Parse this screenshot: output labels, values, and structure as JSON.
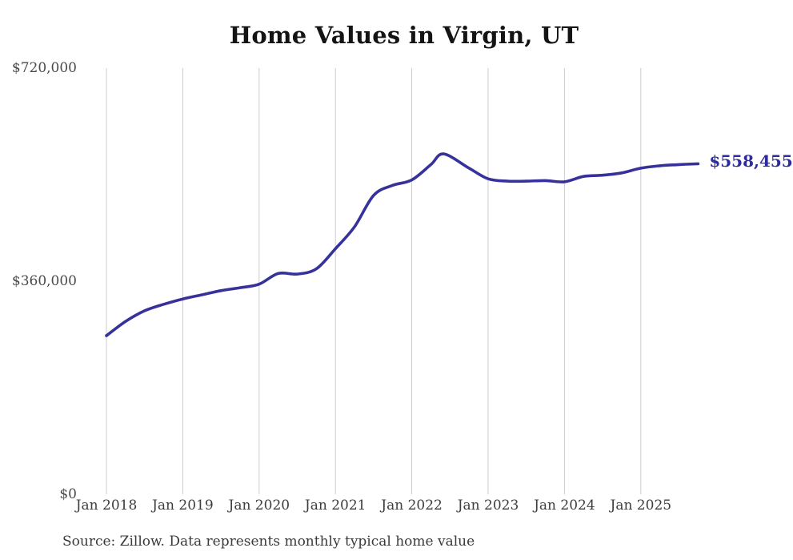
{
  "page": {
    "source_note": "Source: Zillow. Data represents monthly typical home value"
  },
  "colors": {
    "line": "#37329B",
    "end_label": "#2D2B9E",
    "gridline": "#CCCCCC",
    "axis_text": "#3D3D3D",
    "title_text": "#141414"
  },
  "chart_data": {
    "type": "line",
    "title": "Home Values in Virgin, UT",
    "xlabel": "",
    "ylabel": "",
    "ylim": [
      0,
      720000
    ],
    "y_ticks": [
      0,
      360000,
      720000
    ],
    "y_tick_labels": [
      "$0",
      "$360,000",
      "$720,000"
    ],
    "x_tick_years": [
      2018,
      2019,
      2020,
      2021,
      2022,
      2023,
      2024,
      2025
    ],
    "x_tick_labels": [
      "Jan 2018",
      "Jan 2019",
      "Jan 2020",
      "Jan 2021",
      "Jan 2022",
      "Jan 2023",
      "Jan 2024",
      "Jan 2025"
    ],
    "grid": "vertical",
    "legend": "none",
    "final_value_label": "$558,455",
    "series": [
      {
        "name": "Monthly typical home value",
        "points": [
          {
            "date": "2018-01",
            "value": 268000
          },
          {
            "date": "2018-04",
            "value": 292000
          },
          {
            "date": "2018-07",
            "value": 310000
          },
          {
            "date": "2018-10",
            "value": 321000
          },
          {
            "date": "2019-01",
            "value": 330000
          },
          {
            "date": "2019-04",
            "value": 337000
          },
          {
            "date": "2019-07",
            "value": 344000
          },
          {
            "date": "2019-10",
            "value": 349000
          },
          {
            "date": "2020-01",
            "value": 355000
          },
          {
            "date": "2020-04",
            "value": 373000
          },
          {
            "date": "2020-07",
            "value": 372000
          },
          {
            "date": "2020-10",
            "value": 381000
          },
          {
            "date": "2021-01",
            "value": 415000
          },
          {
            "date": "2021-04",
            "value": 452000
          },
          {
            "date": "2021-07",
            "value": 505000
          },
          {
            "date": "2021-10",
            "value": 522000
          },
          {
            "date": "2022-01",
            "value": 531000
          },
          {
            "date": "2022-04",
            "value": 557000
          },
          {
            "date": "2022-06",
            "value": 575000
          },
          {
            "date": "2022-10",
            "value": 551000
          },
          {
            "date": "2023-01",
            "value": 533000
          },
          {
            "date": "2023-04",
            "value": 529000
          },
          {
            "date": "2023-07",
            "value": 529000
          },
          {
            "date": "2023-10",
            "value": 530000
          },
          {
            "date": "2024-01",
            "value": 528000
          },
          {
            "date": "2024-04",
            "value": 537000
          },
          {
            "date": "2024-07",
            "value": 539000
          },
          {
            "date": "2024-10",
            "value": 543000
          },
          {
            "date": "2025-01",
            "value": 551000
          },
          {
            "date": "2025-04",
            "value": 555000
          },
          {
            "date": "2025-07",
            "value": 557000
          },
          {
            "date": "2025-10",
            "value": 558455
          }
        ]
      }
    ]
  }
}
